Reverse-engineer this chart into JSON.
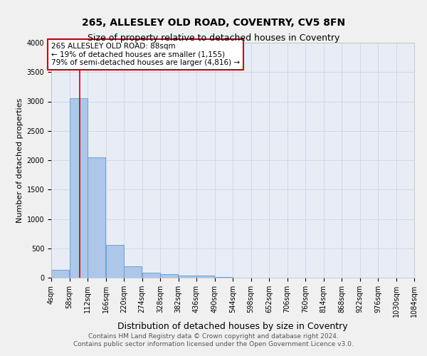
{
  "title1": "265, ALLESLEY OLD ROAD, COVENTRY, CV5 8FN",
  "title2": "Size of property relative to detached houses in Coventry",
  "xlabel": "Distribution of detached houses by size in Coventry",
  "ylabel": "Number of detached properties",
  "footer1": "Contains HM Land Registry data © Crown copyright and database right 2024.",
  "footer2": "Contains public sector information licensed under the Open Government Licence v3.0.",
  "bin_edges": [
    4,
    58,
    112,
    166,
    220,
    274,
    328,
    382,
    436,
    490,
    544,
    598,
    652,
    706,
    760,
    814,
    868,
    922,
    976,
    1030,
    1084
  ],
  "bar_heights": [
    130,
    3050,
    2050,
    560,
    200,
    80,
    55,
    40,
    35,
    10,
    0,
    0,
    0,
    0,
    0,
    0,
    0,
    0,
    0,
    0
  ],
  "bar_color": "#aec6e8",
  "bar_edge_color": "#5b9bd5",
  "grid_color": "#d0d8e8",
  "background_color": "#e8ecf5",
  "property_line_x": 88,
  "property_line_color": "#cc0000",
  "annotation_text": "265 ALLESLEY OLD ROAD: 88sqm\n← 19% of detached houses are smaller (1,155)\n79% of semi-detached houses are larger (4,816) →",
  "annotation_box_color": "#cc0000",
  "annotation_bg": "#ffffff",
  "ylim": [
    0,
    4000
  ],
  "yticks": [
    0,
    500,
    1000,
    1500,
    2000,
    2500,
    3000,
    3500,
    4000
  ],
  "title1_fontsize": 10,
  "title2_fontsize": 9,
  "xlabel_fontsize": 9,
  "ylabel_fontsize": 8,
  "tick_fontsize": 7,
  "footer_fontsize": 6.5,
  "annot_fontsize": 7.5
}
